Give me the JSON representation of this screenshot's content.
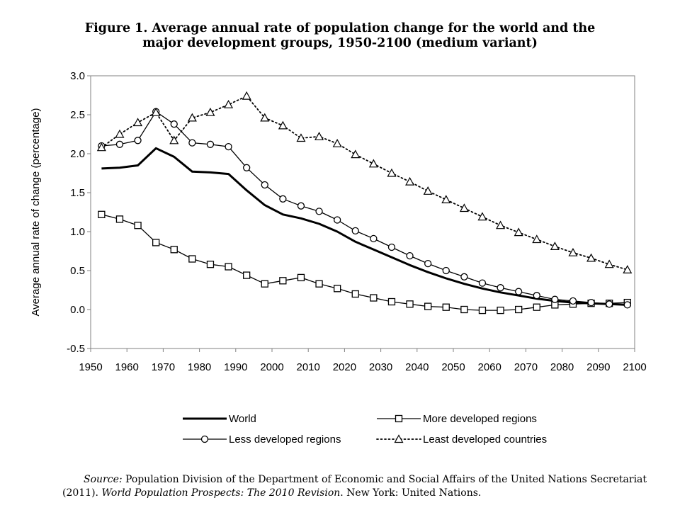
{
  "figure": {
    "title_line1": "Figure 1.  Average annual rate of population change for the world and the",
    "title_line2": "major development groups, 1950-2100 (medium variant)"
  },
  "source": {
    "label": "Source:",
    "text1": " Population Division of the Department of Economic and Social Affairs of the United Nations Secretariat",
    "text2_prefix": "(2011). ",
    "publication": "World Population Prospects: The 2010 Revision",
    "text2_suffix": ". New York: United Nations."
  },
  "chart_data": {
    "type": "line",
    "title": "Figure 1.  Average annual rate of population change for the world and the major development groups, 1950-2100 (medium variant)",
    "xlabel": "",
    "ylabel": "Average annual rate of change  (percentage)",
    "xlim": [
      1950,
      2100
    ],
    "ylim": [
      -0.5,
      3.0
    ],
    "xticks": [
      "1950",
      "1960",
      "1970",
      "1980",
      "1990",
      "2000",
      "2010",
      "2020",
      "2030",
      "2040",
      "2050",
      "2060",
      "2070",
      "2080",
      "2090",
      "2100"
    ],
    "yticks": [
      "-0.5",
      "0.0",
      "0.5",
      "1.0",
      "1.5",
      "2.0",
      "2.5",
      "3.0"
    ],
    "grid": false,
    "legend_position": "bottom",
    "x": [
      1953,
      1958,
      1963,
      1968,
      1973,
      1978,
      1983,
      1988,
      1993,
      1998,
      2003,
      2008,
      2013,
      2018,
      2023,
      2028,
      2033,
      2038,
      2043,
      2048,
      2053,
      2058,
      2063,
      2068,
      2073,
      2078,
      2083,
      2088,
      2093,
      2098
    ],
    "series": [
      {
        "name": "World",
        "style": "solid-thick",
        "marker": "none",
        "color": "#000000",
        "values": [
          1.81,
          1.82,
          1.85,
          2.07,
          1.96,
          1.77,
          1.76,
          1.74,
          1.53,
          1.34,
          1.22,
          1.17,
          1.1,
          1.0,
          0.87,
          0.77,
          0.67,
          0.57,
          0.48,
          0.4,
          0.33,
          0.27,
          0.22,
          0.18,
          0.14,
          0.11,
          0.09,
          0.08,
          0.07,
          0.06
        ]
      },
      {
        "name": "More developed regions",
        "style": "solid",
        "marker": "square",
        "color": "#000000",
        "values": [
          1.22,
          1.16,
          1.08,
          0.86,
          0.77,
          0.65,
          0.58,
          0.55,
          0.44,
          0.33,
          0.37,
          0.41,
          0.33,
          0.27,
          0.2,
          0.15,
          0.1,
          0.07,
          0.04,
          0.03,
          0.0,
          -0.01,
          -0.01,
          0.0,
          0.03,
          0.06,
          0.07,
          0.08,
          0.08,
          0.09
        ]
      },
      {
        "name": "Less developed regions",
        "style": "solid",
        "marker": "circle",
        "color": "#000000",
        "values": [
          2.1,
          2.12,
          2.17,
          2.54,
          2.38,
          2.14,
          2.12,
          2.09,
          1.82,
          1.6,
          1.42,
          1.33,
          1.26,
          1.15,
          1.01,
          0.91,
          0.8,
          0.69,
          0.59,
          0.5,
          0.42,
          0.34,
          0.28,
          0.23,
          0.18,
          0.13,
          0.11,
          0.09,
          0.07,
          0.06
        ]
      },
      {
        "name": "Least developed countries",
        "style": "dotted",
        "marker": "triangle",
        "color": "#000000",
        "values": [
          2.08,
          2.25,
          2.4,
          2.53,
          2.17,
          2.46,
          2.53,
          2.63,
          2.74,
          2.46,
          2.36,
          2.2,
          2.22,
          2.13,
          1.99,
          1.87,
          1.75,
          1.64,
          1.52,
          1.41,
          1.3,
          1.19,
          1.08,
          0.99,
          0.9,
          0.81,
          0.73,
          0.66,
          0.58,
          0.51
        ]
      }
    ]
  }
}
